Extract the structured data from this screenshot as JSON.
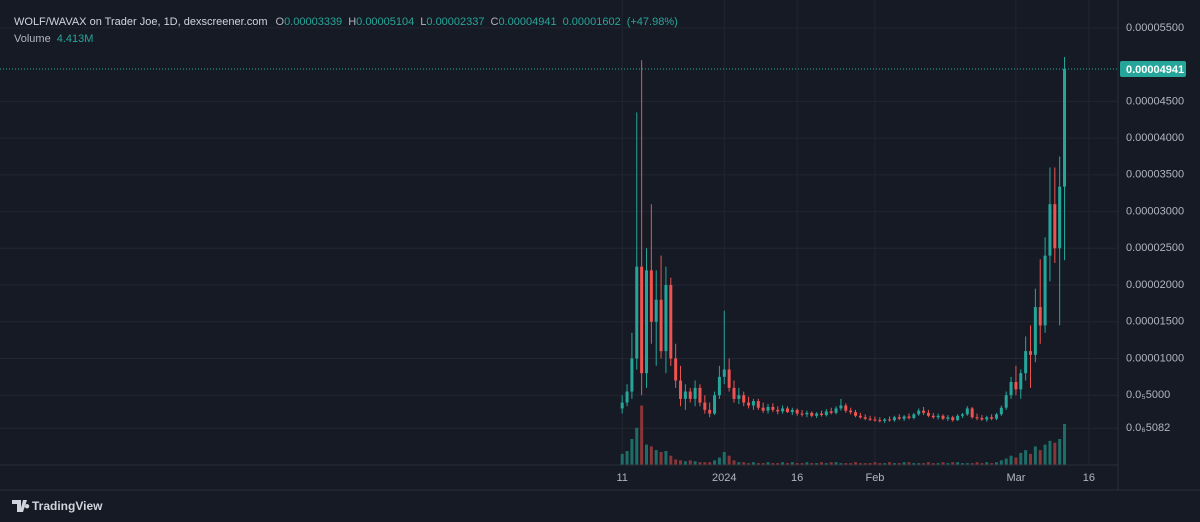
{
  "chart_data": {
    "type": "candlestick",
    "header": {
      "symbol": "WOLF/WAVAX on Trader Joe, 1D, dexscreener.com",
      "ohlc": [
        {
          "label": "O",
          "value": "0.00003339"
        },
        {
          "label": "H",
          "value": "0.00005104"
        },
        {
          "label": "L",
          "value": "0.00002337"
        },
        {
          "label": "C",
          "value": "0.00004941"
        }
      ],
      "change": "0.00001602",
      "change_pct": "(+47.98%)",
      "volume_label": "Volume",
      "volume_value": "4.413M"
    },
    "brand": "TradingView",
    "last_price": {
      "value": 4.941e-05,
      "label": "0.00004941"
    },
    "up_color": "#26a69a",
    "down_color": "#ef5350",
    "volume_up_color": "#1e6e68",
    "volume_down_color": "#8a3537",
    "x": [
      0,
      1,
      2,
      3,
      4,
      5,
      6,
      7,
      8,
      9,
      10,
      11,
      12,
      13,
      14,
      15,
      16,
      17,
      18,
      19,
      20,
      21,
      22,
      23,
      24,
      25,
      26,
      27,
      28,
      29,
      30,
      31,
      32,
      33,
      34,
      35,
      36,
      37,
      38,
      39,
      40,
      41,
      42,
      43,
      44,
      45,
      46,
      47,
      48,
      49,
      50,
      51,
      52,
      53,
      54,
      55,
      56,
      57,
      58,
      59,
      60,
      61,
      62,
      63,
      64,
      65,
      66,
      67,
      68,
      69,
      70,
      71,
      72,
      73,
      74,
      75,
      76,
      77,
      78,
      79,
      80,
      81,
      82,
      83,
      84,
      85,
      86,
      87,
      88,
      89,
      90,
      91
    ],
    "open": [
      3.2e-06,
      4e-06,
      5.5e-06,
      1e-05,
      2.25e-05,
      8e-06,
      2.2e-05,
      1.5e-05,
      1.8e-05,
      1.1e-05,
      2e-05,
      1e-05,
      7e-06,
      4.5e-06,
      5.5e-06,
      4.5e-06,
      6e-06,
      4e-06,
      3e-06,
      2.5e-06,
      5e-06,
      7.5e-06,
      8.5e-06,
      6e-06,
      4.5e-06,
      5e-06,
      4e-06,
      3.6e-06,
      4.2e-06,
      3.3e-06,
      2.9e-06,
      3.4e-06,
      3e-06,
      2.8e-06,
      3.2e-06,
      2.7e-06,
      3e-06,
      2.5e-06,
      2.4e-06,
      2.6e-06,
      2.2e-06,
      2.5e-06,
      2.3e-06,
      2.8e-06,
      2.6e-06,
      3.2e-06,
      3.6e-06,
      2.9e-06,
      2.7e-06,
      2.2e-06,
      2e-06,
      1.8e-06,
      1.7e-06,
      1.6e-06,
      1.5e-06,
      1.7e-06,
      1.6e-06,
      2e-06,
      1.8e-06,
      2.1e-06,
      1.9e-06,
      2.4e-06,
      2.9e-06,
      2.6e-06,
      2.2e-06,
      2e-06,
      2.2e-06,
      1.8e-06,
      2e-06,
      1.6e-06,
      2.2e-06,
      2.4e-06,
      3.2e-06,
      2e-06,
      1.9e-06,
      1.7e-06,
      2e-06,
      1.8e-06,
      2.4e-06,
      3.3e-06,
      5e-06,
      6.8e-06,
      5.8e-06,
      8e-06,
      1.1e-05,
      1.05e-05,
      1.7e-05,
      1.45e-05,
      2.4e-05,
      3.1e-05,
      2.5e-05,
      3.339e-05
    ],
    "high": [
      5e-06,
      6.5e-06,
      1.35e-05,
      4.35e-05,
      5.06e-05,
      2.5e-05,
      3.1e-05,
      2.2e-05,
      2.4e-05,
      2.25e-05,
      2.1e-05,
      1.2e-05,
      9e-06,
      6.5e-06,
      6e-06,
      7e-06,
      6.5e-06,
      5e-06,
      4e-06,
      5.5e-06,
      9e-06,
      1.65e-05,
      1e-05,
      7e-06,
      6e-06,
      5.5e-06,
      4.8e-06,
      4.5e-06,
      4.5e-06,
      4e-06,
      3.8e-06,
      3.9e-06,
      3.5e-06,
      3.6e-06,
      3.5e-06,
      3.3e-06,
      3.2e-06,
      3e-06,
      2.9e-06,
      2.8e-06,
      2.7e-06,
      2.9e-06,
      3.1e-06,
      3.3e-06,
      3.5e-06,
      4.5e-06,
      3.9e-06,
      3.3e-06,
      3e-06,
      2.6e-06,
      2.4e-06,
      2.2e-06,
      2.1e-06,
      2e-06,
      1.9e-06,
      2.1e-06,
      2.2e-06,
      2.4e-06,
      2.3e-06,
      2.5e-06,
      2.6e-06,
      3.2e-06,
      3.4e-06,
      3e-06,
      2.6e-06,
      2.5e-06,
      2.4e-06,
      2.3e-06,
      2.2e-06,
      2.4e-06,
      2.6e-06,
      3.5e-06,
      3.4e-06,
      2.5e-06,
      2.3e-06,
      2.2e-06,
      2.4e-06,
      2.6e-06,
      3.6e-06,
      5.5e-06,
      7.5e-06,
      9e-06,
      8.5e-06,
      1.3e-05,
      1.45e-05,
      1.95e-05,
      2.35e-05,
      2.65e-05,
      3.6e-05,
      3.6e-05,
      3.75e-05,
      5.104e-05
    ],
    "low": [
      2.5e-06,
      3.5e-06,
      4.5e-06,
      8.5e-06,
      5e-06,
      6e-06,
      1.2e-05,
      9e-06,
      1e-05,
      8e-06,
      9e-06,
      6e-06,
      3.5e-06,
      3e-06,
      4e-06,
      3.5e-06,
      3.5e-06,
      2.5e-06,
      2e-06,
      2.3e-06,
      4.5e-06,
      6.5e-06,
      5.5e-06,
      4e-06,
      3.8e-06,
      3.5e-06,
      3.2e-06,
      3e-06,
      3e-06,
      2.6e-06,
      2.5e-06,
      2.7e-06,
      2.4e-06,
      2.5e-06,
      2.6e-06,
      2.3e-06,
      2.2e-06,
      2.1e-06,
      2e-06,
      2e-06,
      1.9e-06,
      2.1e-06,
      2.1e-06,
      2.4e-06,
      2.4e-06,
      2.9e-06,
      2.6e-06,
      2.4e-06,
      2e-06,
      1.8e-06,
      1.6e-06,
      1.5e-06,
      1.4e-06,
      1.3e-06,
      1.2e-06,
      1.4e-06,
      1.4e-06,
      1.6e-06,
      1.5e-06,
      1.7e-06,
      1.7e-06,
      2.2e-06,
      2.3e-06,
      2e-06,
      1.8e-06,
      1.7e-06,
      1.6e-06,
      1.5e-06,
      1.4e-06,
      1.5e-06,
      1.9e-06,
      2.2e-06,
      1.8e-06,
      1.6e-06,
      1.5e-06,
      1.4e-06,
      1.6e-06,
      1.6e-06,
      2.2e-06,
      3e-06,
      4.5e-06,
      5e-06,
      4.5e-06,
      7e-06,
      6e-06,
      9.5e-06,
      1.2e-05,
      1.35e-05,
      2.05e-05,
      2.3e-05,
      1.45e-05,
      2.337e-05
    ],
    "close": [
      4e-06,
      5.5e-06,
      1e-05,
      2.25e-05,
      8e-06,
      2.2e-05,
      1.5e-05,
      1.8e-05,
      1.1e-05,
      2e-05,
      1e-05,
      7e-06,
      4.5e-06,
      5.5e-06,
      4.5e-06,
      6e-06,
      4e-06,
      3e-06,
      2.5e-06,
      5e-06,
      7.5e-06,
      8.5e-06,
      6e-06,
      4.5e-06,
      5e-06,
      4e-06,
      3.6e-06,
      4.2e-06,
      3.3e-06,
      2.9e-06,
      3.4e-06,
      3e-06,
      2.8e-06,
      3.2e-06,
      2.7e-06,
      3e-06,
      2.5e-06,
      2.4e-06,
      2.6e-06,
      2.2e-06,
      2.5e-06,
      2.3e-06,
      2.8e-06,
      2.6e-06,
      3.2e-06,
      3.6e-06,
      2.9e-06,
      2.7e-06,
      2.2e-06,
      2e-06,
      1.8e-06,
      1.7e-06,
      1.6e-06,
      1.5e-06,
      1.7e-06,
      1.6e-06,
      2e-06,
      1.8e-06,
      2.1e-06,
      1.9e-06,
      2.4e-06,
      2.9e-06,
      2.6e-06,
      2.2e-06,
      2e-06,
      2.2e-06,
      1.8e-06,
      2e-06,
      1.6e-06,
      2.2e-06,
      2.4e-06,
      3.2e-06,
      2e-06,
      1.9e-06,
      1.7e-06,
      2e-06,
      1.8e-06,
      2.4e-06,
      3.3e-06,
      5e-06,
      6.8e-06,
      5.8e-06,
      8e-06,
      1.1e-05,
      1.05e-05,
      1.7e-05,
      1.45e-05,
      2.4e-05,
      3.1e-05,
      2.5e-05,
      3.339e-05,
      4.941e-05
    ],
    "volume": [
      1200000.0,
      1500000.0,
      2800000.0,
      4000000.0,
      6400000.0,
      2200000.0,
      2000000.0,
      1600000.0,
      1400000.0,
      1500000.0,
      1000000.0,
      600000.0,
      500000.0,
      400000.0,
      500000.0,
      400000.0,
      300000.0,
      300000.0,
      300000.0,
      500000.0,
      800000.0,
      1400000.0,
      1000000.0,
      500000.0,
      300000.0,
      300000.0,
      200000.0,
      300000.0,
      200000.0,
      200000.0,
      300000.0,
      200000.0,
      200000.0,
      300000.0,
      200000.0,
      300000.0,
      200000.0,
      200000.0,
      300000.0,
      200000.0,
      200000.0,
      300000.0,
      200000.0,
      300000.0,
      300000.0,
      200000.0,
      200000.0,
      200000.0,
      300000.0,
      200000.0,
      200000.0,
      200000.0,
      300000.0,
      200000.0,
      200000.0,
      300000.0,
      200000.0,
      200000.0,
      300000.0,
      300000.0,
      200000.0,
      200000.0,
      200000.0,
      300000.0,
      200000.0,
      200000.0,
      300000.0,
      200000.0,
      300000.0,
      300000.0,
      200000.0,
      200000.0,
      200000.0,
      300000.0,
      200000.0,
      300000.0,
      200000.0,
      300000.0,
      500000.0,
      700000.0,
      1000000.0,
      800000.0,
      1300000.0,
      1600000.0,
      1200000.0,
      2000000.0,
      1600000.0,
      2200000.0,
      2600000.0,
      2400000.0,
      2800000.0,
      4413000.0
    ],
    "volume_ylim": [
      0,
      10000000
    ],
    "xlim": [
      -128,
      102
    ],
    "xticks": [
      {
        "value": 0,
        "label": "11"
      },
      {
        "value": 21,
        "label": "2024"
      },
      {
        "value": 36,
        "label": "16"
      },
      {
        "value": 52,
        "label": "Feb"
      },
      {
        "value": 81,
        "label": "Mar"
      },
      {
        "value": 96,
        "label": "16"
      }
    ],
    "ylim": [
      -4.5e-06,
      5.88e-05
    ],
    "yticks": [
      {
        "value": 5.082e-07,
        "label": "0.0₆5082"
      },
      {
        "value": 5e-06,
        "label": "0.0₅5000"
      },
      {
        "value": 1e-05,
        "label": "0.00001000"
      },
      {
        "value": 1.5e-05,
        "label": "0.00001500"
      },
      {
        "value": 2e-05,
        "label": "0.00002000"
      },
      {
        "value": 2.5e-05,
        "label": "0.00002500"
      },
      {
        "value": 3e-05,
        "label": "0.00003000"
      },
      {
        "value": 3.5e-05,
        "label": "0.00003500"
      },
      {
        "value": 4e-05,
        "label": "0.00004000"
      },
      {
        "value": 4.5e-05,
        "label": "0.00004500"
      },
      {
        "value": 5.5e-05,
        "label": "0.00005500"
      }
    ],
    "grid": true
  }
}
